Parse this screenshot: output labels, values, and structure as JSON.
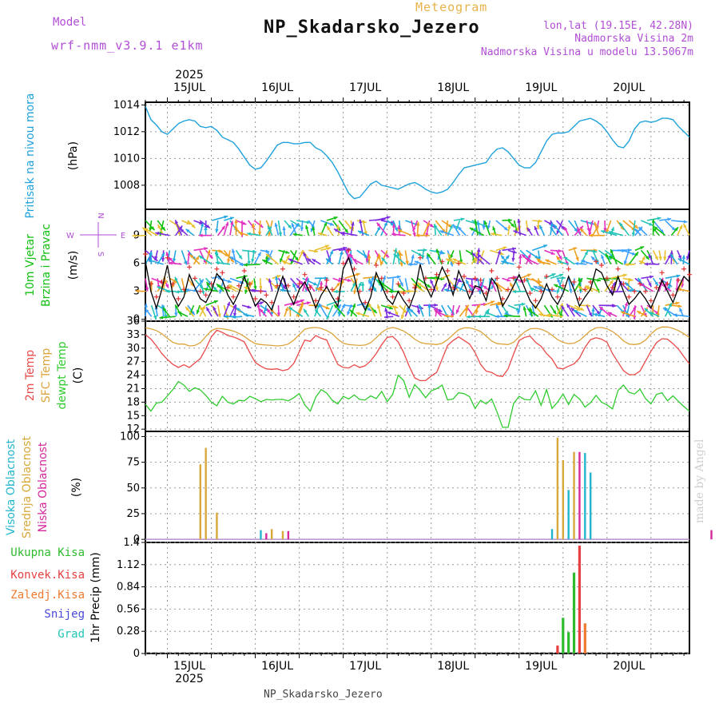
{
  "header": {
    "model_label": "Model",
    "model_name": "wrf-nmm_v3.9.1 e1km",
    "product": "Meteogram",
    "station": "NP_Skadarsko_Jezero",
    "lonlat": "lon,lat (19.15E, 42.28N)",
    "elevation": "Nadmorska Visina 2m",
    "elevation_model": "Nadmorska Visina u modelu 13.5067m"
  },
  "footer": {
    "station": "NP_Skadarsko_Jezero",
    "credit": "made by Angel"
  },
  "colors": {
    "pressure": "#1fa2dc",
    "wind": "#11c011",
    "temp2m": "#ea4a4a",
    "sfc": "#dca43c",
    "dew": "#2ecc2e",
    "cloud_high": "#22b6cc",
    "cloud_mid": "#d8a83a",
    "cloud_low": "#d6289c",
    "rain_total": "#2ebb2e",
    "rain_conv": "#e64040",
    "rain_frz": "#f07a30",
    "snow": "#4848d8",
    "graupel": "#22c4b8",
    "speed_line": "#000000",
    "gust": "#e03030"
  },
  "chart_data": [
    {
      "type": "line",
      "panel": "pressure",
      "ylabel": [
        "Pritisak na nivou mora",
        "(hPa)"
      ],
      "ylim": [
        1006.2,
        1014.2
      ],
      "yticks": [
        1008,
        1010,
        1012,
        1014
      ],
      "x_start": "2025-07-14 12:00",
      "x_end": "2025-07-20 12:00",
      "x_step_hours": 3,
      "x_top_labels": [
        "15JUL",
        "16JUL",
        "17JUL",
        "18JUL",
        "19JUL",
        "20JUL"
      ],
      "x_top_year": "2025",
      "series": [
        {
          "values": [
            1013.9,
            1012.9,
            1012.5,
            1012.0,
            1011.8,
            1012.2,
            1012.6,
            1012.8,
            1012.9,
            1012.8,
            1012.4,
            1012.3,
            1012.4,
            1012.1,
            1011.6,
            1011.4,
            1011.2,
            1010.7,
            1010.1,
            1009.5,
            1009.2,
            1009.3,
            1009.8,
            1010.4,
            1011.0,
            1011.2,
            1011.2,
            1011.1,
            1011.1,
            1011.2,
            1011.2,
            1010.8,
            1010.6,
            1010.2,
            1009.7,
            1009.0,
            1008.2,
            1007.4,
            1007.0,
            1007.1,
            1007.6,
            1008.1,
            1008.3,
            1008.0,
            1007.9,
            1007.8,
            1007.7,
            1007.9,
            1008.1,
            1008.2,
            1008.0,
            1007.7,
            1007.5,
            1007.4,
            1007.5,
            1007.7,
            1008.2,
            1008.8,
            1009.3,
            1009.4,
            1009.5,
            1009.6,
            1009.7,
            1010.3,
            1010.7,
            1010.8,
            1010.5,
            1010.0,
            1009.5,
            1009.3,
            1009.3,
            1009.7,
            1010.5,
            1011.3,
            1011.8,
            1011.9,
            1011.9,
            1012.0,
            1012.4,
            1012.8,
            1012.9,
            1013.0,
            1012.8,
            1012.5,
            1012.0,
            1011.4,
            1010.9,
            1010.8,
            1011.3,
            1012.2,
            1012.7,
            1012.8,
            1012.7,
            1012.8,
            1013.0,
            1013.0,
            1012.9,
            1012.4,
            1012.0,
            1011.6
          ]
        }
      ]
    },
    {
      "type": "line",
      "panel": "wind",
      "ylabel": [
        "10m Vjetar",
        "Brzina i Pravac",
        "(m/s)"
      ],
      "compass": {
        "n": "N",
        "s": "S",
        "e": "E",
        "w": "W"
      },
      "ylim": [
        -0.2,
        11.8
      ],
      "yticks": [
        0,
        3,
        6,
        9
      ],
      "series": [
        {
          "name": "speed",
          "values": [
            6.2,
            3.0,
            1.2,
            3.2,
            5.8,
            2.6,
            1.4,
            2.4,
            4.8,
            3.4,
            2.2,
            1.8,
            3.0,
            4.9,
            4.2,
            2.6,
            1.6,
            2.8,
            4.6,
            3.0,
            1.4,
            2.2,
            1.8,
            1.0,
            2.8,
            4.6,
            2.8,
            1.6,
            3.2,
            4.0,
            2.8,
            1.2,
            2.6,
            3.5,
            2.4,
            1.4,
            5.4,
            6.6,
            4.6,
            2.2,
            1.0,
            2.4,
            5.0,
            3.6,
            2.2,
            1.6,
            3.0,
            2.0,
            1.2,
            2.8,
            5.9,
            3.6,
            2.4,
            4.0,
            5.6,
            4.4,
            2.6,
            5.2,
            3.8,
            2.2,
            3.6,
            3.4,
            2.0,
            4.4,
            3.6,
            1.4,
            2.4,
            3.6,
            4.8,
            3.4,
            2.0,
            1.2,
            2.2,
            3.8,
            2.4,
            1.6,
            2.8,
            4.6,
            3.2,
            1.4,
            2.4,
            3.2,
            5.4,
            5.0,
            3.6,
            2.6,
            4.6,
            3.0,
            1.6,
            2.2,
            3.0,
            2.2,
            1.2,
            2.6,
            4.2,
            3.0,
            1.8,
            3.4,
            4.6,
            4.0
          ]
        },
        {
          "name": "gust",
          "values": [
            7.0,
            3.8,
            2.4,
            4.0,
            6.6,
            3.8,
            2.2,
            3.2,
            5.6,
            4.4,
            3.0,
            2.6,
            3.8,
            5.4,
            5.0,
            3.4,
            2.4,
            3.6,
            5.2,
            3.8,
            2.2,
            3.0,
            2.6,
            1.8,
            3.6,
            5.4,
            3.6,
            2.4,
            3.8,
            4.8,
            3.4,
            2.0,
            3.4,
            4.2,
            3.2,
            2.2,
            6.0,
            7.4,
            5.4,
            3.0,
            1.8,
            3.2,
            5.8,
            4.4,
            3.0,
            2.4,
            3.8,
            2.8,
            2.0,
            3.4,
            6.6,
            4.4,
            3.2,
            4.8,
            6.2,
            5.2,
            3.4,
            6.0,
            4.6,
            3.0,
            4.4,
            4.2,
            2.8,
            5.2,
            4.4,
            2.2,
            3.2,
            4.4,
            5.6,
            4.2,
            2.8,
            2.0,
            3.0,
            4.6,
            3.2,
            2.4,
            3.6,
            5.4,
            4.0,
            2.2,
            3.2,
            4.0,
            6.2,
            5.8,
            4.4,
            3.4,
            5.4,
            3.8,
            2.4,
            3.0,
            3.8,
            3.0,
            2.0,
            3.4,
            5.0,
            3.8,
            2.6,
            4.2,
            5.4,
            4.8
          ]
        }
      ]
    },
    {
      "type": "line",
      "panel": "temperature",
      "ylabel": [
        "2m Temp",
        "SFC Temp",
        "dewpt Temp",
        "(C)"
      ],
      "ylim": [
        11.5,
        36.0
      ],
      "yticks": [
        12,
        15,
        18,
        21,
        24,
        27,
        30,
        33,
        36
      ],
      "series": [
        {
          "name": "2m Temp",
          "values": [
            33.0,
            32.0,
            30.5,
            28.8,
            27.5,
            26.4,
            25.7,
            26.3,
            25.7,
            26.7,
            27.7,
            29.9,
            32.5,
            34.0,
            33.5,
            32.8,
            32.5,
            32.0,
            31.4,
            29.0,
            26.8,
            26.0,
            25.4,
            25.3,
            25.4,
            25.0,
            25.3,
            26.6,
            29.2,
            31.8,
            31.5,
            32.8,
            32.2,
            31.8,
            29.0,
            26.4,
            25.7,
            25.6,
            26.3,
            25.7,
            26.1,
            27.2,
            28.8,
            30.8,
            32.4,
            32.6,
            31.4,
            29.0,
            26.0,
            23.4,
            22.8,
            22.8,
            23.8,
            24.6,
            27.6,
            30.6,
            31.7,
            32.5,
            31.7,
            30.9,
            29.0,
            26.4,
            24.9,
            24.6,
            23.9,
            23.7,
            25.4,
            28.7,
            31.7,
            32.4,
            32.7,
            31.3,
            30.4,
            28.8,
            27.6,
            25.6,
            25.4,
            26.0,
            26.5,
            27.8,
            30.2,
            31.9,
            32.3,
            32.0,
            31.3,
            28.8,
            26.9,
            25.0,
            24.1,
            24.1,
            24.9,
            27.1,
            29.3,
            31.2,
            32.1,
            32.0,
            31.0,
            29.8,
            28.1,
            26.5
          ]
        },
        {
          "name": "SFC Temp",
          "values": [
            34.5,
            34.3,
            33.9,
            33.2,
            32.2,
            31.3,
            30.9,
            30.9,
            30.5,
            30.6,
            31.2,
            32.6,
            33.9,
            34.4,
            34.3,
            34.1,
            33.8,
            33.3,
            32.6,
            31.7,
            31.0,
            30.8,
            30.7,
            30.6,
            30.5,
            30.6,
            30.9,
            31.8,
            33.0,
            34.2,
            34.5,
            34.6,
            34.4,
            33.9,
            33.2,
            32.0,
            31.1,
            30.8,
            30.7,
            30.6,
            30.7,
            31.2,
            32.3,
            33.5,
            34.3,
            34.6,
            34.3,
            33.8,
            33.0,
            32.0,
            31.3,
            31.0,
            30.9,
            30.8,
            31.1,
            31.9,
            33.0,
            34.1,
            34.5,
            34.5,
            34.2,
            33.7,
            32.7,
            31.6,
            31.0,
            30.9,
            30.8,
            31.3,
            32.5,
            33.6,
            34.3,
            34.4,
            34.2,
            33.7,
            32.9,
            31.9,
            31.3,
            31.0,
            31.1,
            31.7,
            32.8,
            33.9,
            34.5,
            34.6,
            34.3,
            33.7,
            32.8,
            31.6,
            30.9,
            30.8,
            31.0,
            31.8,
            33.1,
            34.2,
            34.7,
            34.7,
            34.4,
            33.9,
            33.2,
            32.4
          ]
        },
        {
          "name": "dewpt Temp",
          "values": [
            17.5,
            16.0,
            17.8,
            18.0,
            19.4,
            20.8,
            22.6,
            21.8,
            20.4,
            21.2,
            20.7,
            19.5,
            18.0,
            17.2,
            19.3,
            18.0,
            17.6,
            18.4,
            18.3,
            19.3,
            18.8,
            18.1,
            18.6,
            18.5,
            18.6,
            18.6,
            18.3,
            19.0,
            19.9,
            17.4,
            16.0,
            19.1,
            20.8,
            20.0,
            18.4,
            17.6,
            19.3,
            18.7,
            19.6,
            18.6,
            18.5,
            19.4,
            18.8,
            20.4,
            18.1,
            19.7,
            24.0,
            22.8,
            19.1,
            21.9,
            20.6,
            19.0,
            20.5,
            21.0,
            21.8,
            18.5,
            18.7,
            20.1,
            19.9,
            19.2,
            16.6,
            18.4,
            17.6,
            18.7,
            15.8,
            12.4,
            12.4,
            17.7,
            19.3,
            18.6,
            18.5,
            20.5,
            17.3,
            20.8,
            16.6,
            18.0,
            19.8,
            17.5,
            19.7,
            18.7,
            16.9,
            17.9,
            19.5,
            18.0,
            17.4,
            16.5,
            20.6,
            21.8,
            20.2,
            19.8,
            20.9,
            18.8,
            17.6,
            19.7,
            20.1,
            18.3,
            19.4,
            18.2,
            17.0,
            16.0
          ]
        }
      ]
    },
    {
      "type": "bar",
      "panel": "cloud",
      "ylabel": [
        "Visoka Oblacnost",
        "Srednja Oblacnost",
        "Niska Oblacnost",
        "(%)"
      ],
      "ylim": [
        -3,
        105
      ],
      "yticks": [
        0,
        25,
        50,
        75,
        100
      ],
      "bars": [
        {
          "t": 10,
          "series": "mid",
          "value": 73
        },
        {
          "t": 11,
          "series": "mid",
          "value": 89
        },
        {
          "t": 13,
          "series": "mid",
          "value": 26
        },
        {
          "t": 21,
          "series": "high",
          "value": 9
        },
        {
          "t": 22,
          "series": "low",
          "value": 6
        },
        {
          "t": 23,
          "series": "mid",
          "value": 10
        },
        {
          "t": 25,
          "series": "mid",
          "value": 8
        },
        {
          "t": 26,
          "series": "low",
          "value": 8
        },
        {
          "t": 74,
          "series": "high",
          "value": 10
        },
        {
          "t": 75,
          "series": "mid",
          "value": 99
        },
        {
          "t": 76,
          "series": "mid",
          "value": 77
        },
        {
          "t": 77,
          "series": "high",
          "value": 48
        },
        {
          "t": 78,
          "series": "mid",
          "value": 85
        },
        {
          "t": 79,
          "series": "low",
          "value": 85
        },
        {
          "t": 80,
          "series": "high",
          "value": 84
        },
        {
          "t": 81,
          "series": "high",
          "value": 65
        },
        {
          "t": 103,
          "series": "low",
          "value": 9
        }
      ]
    },
    {
      "type": "bar",
      "panel": "precipitation",
      "ylabel": [
        "Ukupna Kisa",
        "Konvek.Kisa",
        "Zaledj.Kisa",
        "Snijeg",
        "Grad",
        "1hr Precip (mm)"
      ],
      "ylim": [
        0,
        1.4
      ],
      "yticks": [
        0,
        0.28,
        0.56,
        0.84,
        1.12,
        1.4
      ],
      "x_bottom_labels": [
        "15JUL",
        "16JUL",
        "17JUL",
        "18JUL",
        "19JUL",
        "20JUL"
      ],
      "x_bottom_year": "2025",
      "bars": [
        {
          "t": 75,
          "series": "conv",
          "value": 0.1
        },
        {
          "t": 76,
          "series": "total",
          "value": 0.45
        },
        {
          "t": 77,
          "series": "total",
          "value": 0.27
        },
        {
          "t": 78,
          "series": "total",
          "value": 1.02
        },
        {
          "t": 79,
          "series": "conv",
          "value": 1.36
        },
        {
          "t": 80,
          "series": "frz",
          "value": 0.38
        }
      ]
    }
  ]
}
